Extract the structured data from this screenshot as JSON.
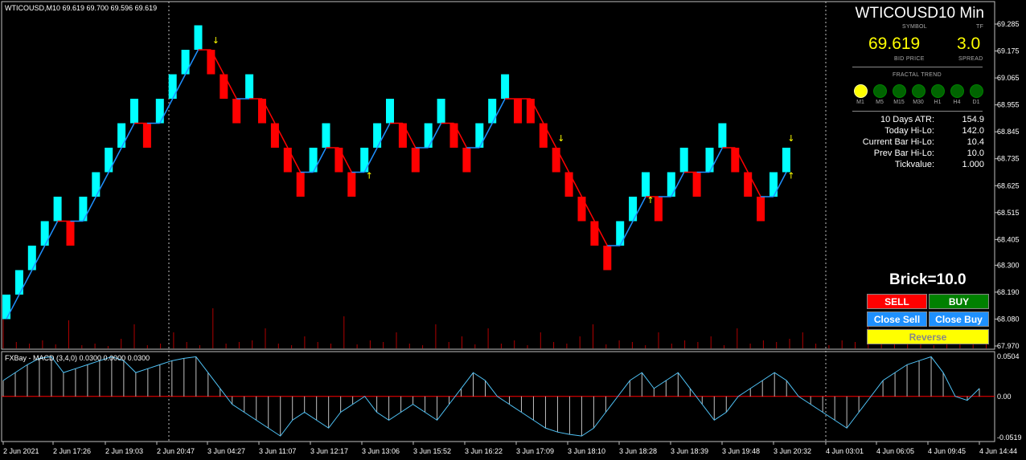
{
  "main_header": "WTICOUSD,M10  69.619 69.700 69.596 69.619",
  "macd_header": "FXBay - MACD (3,4,0) 0.0300 0.0000 0.0300",
  "symbol_title": "WTICOUSD10 Min",
  "symbol_caption": "SYMBOL",
  "tf_caption": "TF",
  "bid_price": "69.619",
  "bid_caption": "BID PRICE",
  "spread": "3.0",
  "spread_caption": "SPREAD",
  "fractal_caption": "FRACTAL TREND",
  "timeframes": [
    {
      "label": "M1",
      "state": "yellow"
    },
    {
      "label": "M5",
      "state": "green"
    },
    {
      "label": "M15",
      "state": "green"
    },
    {
      "label": "M30",
      "state": "green"
    },
    {
      "label": "H1",
      "state": "green"
    },
    {
      "label": "H4",
      "state": "green"
    },
    {
      "label": "D1",
      "state": "green"
    }
  ],
  "stats": [
    {
      "label": "10 Days ATR:",
      "value": "154.9"
    },
    {
      "label": "Today Hi-Lo:",
      "value": "142.0"
    },
    {
      "label": "Current Bar Hi-Lo:",
      "value": "10.4"
    },
    {
      "label": "Prev Bar Hi-Lo:",
      "value": "10.0"
    },
    {
      "label": "Tickvalue:",
      "value": "1.000"
    }
  ],
  "brick_label": "Brick=10.0",
  "buttons": {
    "sell": "SELL",
    "buy": "BUY",
    "close_sell": "Close Sell",
    "close_buy": "Close Buy",
    "reverse": "Reverse"
  },
  "colors": {
    "up_brick": "#00ffff",
    "down_brick": "#ff0000",
    "up_trend": "#1e90ff",
    "down_trend": "#ff0000",
    "sell_btn": "#ff0000",
    "buy_btn": "#008000",
    "close_btn": "#1e90ff",
    "reverse_btn": "#ffff00",
    "arrow": "#ffff00",
    "grid": "#c0c0c0"
  },
  "chart_data": {
    "type": "renko",
    "symbol": "WTICOUSD",
    "timeframe": "M10",
    "brick_size": 10.0,
    "price_axis": [
      "69.285",
      "69.175",
      "69.065",
      "68.955",
      "68.845",
      "68.735",
      "68.625",
      "68.515",
      "68.405",
      "68.300",
      "68.190",
      "68.080",
      "67.970"
    ],
    "ylim": [
      67.96,
      69.3
    ],
    "macd_axis": [
      "0.0504",
      "0.00",
      "-0.0519"
    ],
    "time_axis": [
      "2 Jun 2021",
      "2 Jun 17:26",
      "2 Jun 19:03",
      "2 Jun 20:47",
      "3 Jun 04:27",
      "3 Jun 11:07",
      "3 Jun 12:17",
      "3 Jun 13:06",
      "3 Jun 15:52",
      "3 Jun 16:22",
      "3 Jun 17:09",
      "3 Jun 18:10",
      "3 Jun 18:28",
      "3 Jun 18:39",
      "3 Jun 19:48",
      "3 Jun 20:32",
      "4 Jun 03:01",
      "4 Jun 06:05",
      "4 Jun 09:45",
      "4 Jun 14:44"
    ],
    "bricks": [
      {
        "o": 68.08,
        "c": 68.18
      },
      {
        "o": 68.18,
        "c": 68.28
      },
      {
        "o": 68.28,
        "c": 68.38
      },
      {
        "o": 68.38,
        "c": 68.48
      },
      {
        "o": 68.48,
        "c": 68.58
      },
      {
        "o": 68.48,
        "c": 68.38
      },
      {
        "o": 68.48,
        "c": 68.58
      },
      {
        "o": 68.58,
        "c": 68.68
      },
      {
        "o": 68.68,
        "c": 68.78
      },
      {
        "o": 68.78,
        "c": 68.88
      },
      {
        "o": 68.88,
        "c": 68.98
      },
      {
        "o": 68.88,
        "c": 68.78
      },
      {
        "o": 68.88,
        "c": 68.98
      },
      {
        "o": 68.98,
        "c": 69.08
      },
      {
        "o": 69.08,
        "c": 69.18
      },
      {
        "o": 69.18,
        "c": 69.28
      },
      {
        "o": 69.18,
        "c": 69.08
      },
      {
        "o": 69.08,
        "c": 68.98
      },
      {
        "o": 68.98,
        "c": 68.88
      },
      {
        "o": 68.98,
        "c": 69.08
      },
      {
        "o": 68.98,
        "c": 68.88
      },
      {
        "o": 68.88,
        "c": 68.78
      },
      {
        "o": 68.78,
        "c": 68.68
      },
      {
        "o": 68.68,
        "c": 68.58
      },
      {
        "o": 68.68,
        "c": 68.78
      },
      {
        "o": 68.78,
        "c": 68.88
      },
      {
        "o": 68.78,
        "c": 68.68
      },
      {
        "o": 68.68,
        "c": 68.58
      },
      {
        "o": 68.68,
        "c": 68.78
      },
      {
        "o": 68.78,
        "c": 68.88
      },
      {
        "o": 68.88,
        "c": 68.98
      },
      {
        "o": 68.88,
        "c": 68.78
      },
      {
        "o": 68.78,
        "c": 68.68
      },
      {
        "o": 68.78,
        "c": 68.88
      },
      {
        "o": 68.88,
        "c": 68.98
      },
      {
        "o": 68.88,
        "c": 68.78
      },
      {
        "o": 68.78,
        "c": 68.68
      },
      {
        "o": 68.78,
        "c": 68.88
      },
      {
        "o": 68.88,
        "c": 68.98
      },
      {
        "o": 68.98,
        "c": 69.08
      },
      {
        "o": 68.98,
        "c": 68.88
      },
      {
        "o": 68.98,
        "c": 68.88
      },
      {
        "o": 68.88,
        "c": 68.78
      },
      {
        "o": 68.78,
        "c": 68.68
      },
      {
        "o": 68.68,
        "c": 68.58
      },
      {
        "o": 68.58,
        "c": 68.48
      },
      {
        "o": 68.48,
        "c": 68.38
      },
      {
        "o": 68.38,
        "c": 68.28
      },
      {
        "o": 68.38,
        "c": 68.48
      },
      {
        "o": 68.48,
        "c": 68.58
      },
      {
        "o": 68.58,
        "c": 68.68
      },
      {
        "o": 68.58,
        "c": 68.48
      },
      {
        "o": 68.58,
        "c": 68.68
      },
      {
        "o": 68.68,
        "c": 68.78
      },
      {
        "o": 68.68,
        "c": 68.58
      },
      {
        "o": 68.68,
        "c": 68.78
      },
      {
        "o": 68.78,
        "c": 68.88
      },
      {
        "o": 68.78,
        "c": 68.68
      },
      {
        "o": 68.68,
        "c": 68.58
      },
      {
        "o": 68.58,
        "c": 68.48
      },
      {
        "o": 68.58,
        "c": 68.68
      },
      {
        "o": 68.68,
        "c": 68.78
      }
    ],
    "macd": [
      0.02,
      0.03,
      0.04,
      0.048,
      0.05,
      0.03,
      0.035,
      0.04,
      0.045,
      0.05,
      0.045,
      0.03,
      0.035,
      0.04,
      0.045,
      0.048,
      0.05,
      0.03,
      0.01,
      -0.01,
      -0.02,
      -0.03,
      -0.04,
      -0.05,
      -0.03,
      -0.02,
      -0.03,
      -0.04,
      -0.02,
      -0.01,
      0.0,
      -0.02,
      -0.03,
      -0.02,
      -0.01,
      -0.02,
      -0.03,
      -0.01,
      0.01,
      0.03,
      0.02,
      0.0,
      -0.01,
      -0.02,
      -0.03,
      -0.04,
      -0.045,
      -0.048,
      -0.05,
      -0.04,
      -0.02,
      0.0,
      0.02,
      0.03,
      0.01,
      0.02,
      0.03,
      0.01,
      -0.01,
      -0.03,
      -0.02,
      0.0,
      0.01,
      0.02,
      0.03,
      0.02,
      0.0,
      -0.01,
      -0.02,
      -0.03,
      -0.04,
      -0.02,
      0.0,
      0.02,
      0.03,
      0.04,
      0.045,
      0.05,
      0.03,
      0.0,
      -0.005,
      0.01
    ]
  }
}
